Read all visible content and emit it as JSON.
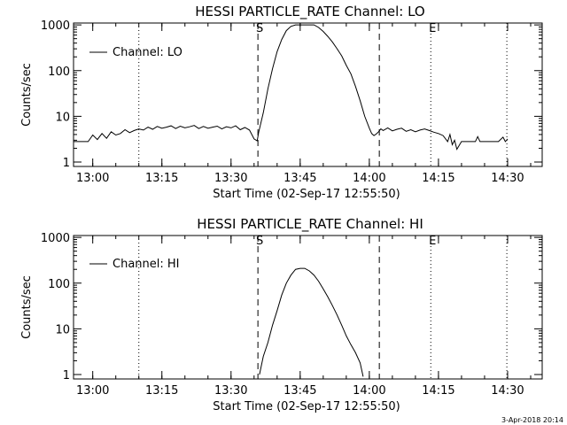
{
  "footer": {
    "date_stamp": "3-Apr-2018 20:14"
  },
  "chart_data": [
    {
      "type": "line",
      "title": "HESSI PARTICLE_RATE Channel: LO",
      "xlabel": "Start Time (02-Sep-17 12:55:50)",
      "ylabel": "Counts/sec",
      "yscale": "log",
      "ylim": [
        0.8,
        1100
      ],
      "xlim": [
        "12:55:50",
        "14:37:30"
      ],
      "x_ticks": [
        "13:00",
        "13:15",
        "13:30",
        "13:45",
        "14:00",
        "14:15",
        "14:30"
      ],
      "y_ticks": [
        "1",
        "10",
        "100",
        "1000"
      ],
      "legend": {
        "position": "top-left",
        "label": "Channel: LO"
      },
      "grid": false,
      "markers": [
        {
          "time": "13:10:00",
          "style": "dotted",
          "label": ""
        },
        {
          "time": "13:35:50",
          "style": "dashed",
          "label": "S"
        },
        {
          "time": "14:02:10",
          "style": "dashed",
          "label": ""
        },
        {
          "time": "14:13:20",
          "style": "dotted",
          "label": "E"
        },
        {
          "time": "14:29:50",
          "style": "dotted",
          "label": ""
        }
      ],
      "series": [
        {
          "x": [
            "12:55:50",
            "12:59:00",
            "13:00:00",
            "13:01:00",
            "13:02:00",
            "13:03:00",
            "13:04:00",
            "13:05:00",
            "13:06:00",
            "13:07:00",
            "13:08:00",
            "13:09:00",
            "13:10:00",
            "13:11:00",
            "13:12:00",
            "13:13:00",
            "13:14:00",
            "13:15:00",
            "13:16:00",
            "13:17:00",
            "13:18:00",
            "13:19:00",
            "13:20:00",
            "13:21:00",
            "13:22:00",
            "13:23:00",
            "13:24:00",
            "13:25:00",
            "13:26:00",
            "13:27:00",
            "13:28:00",
            "13:29:00",
            "13:30:00",
            "13:31:00",
            "13:32:00",
            "13:33:00",
            "13:34:00",
            "13:35:00",
            "13:35:40",
            "13:36:00",
            "13:37:00",
            "13:38:00",
            "13:39:00",
            "13:40:00",
            "13:41:00",
            "13:42:00",
            "13:43:00",
            "13:44:00",
            "13:45:00",
            "13:46:00",
            "13:48:00",
            "13:49:00",
            "13:50:00",
            "13:51:00",
            "13:52:00",
            "13:53:00",
            "13:54:00",
            "13:55:00",
            "13:56:00",
            "13:57:00",
            "13:58:00",
            "13:59:00",
            "14:00:00",
            "14:00:30",
            "14:01:00",
            "14:01:30",
            "14:02:00",
            "14:02:30",
            "14:03:00",
            "14:04:00",
            "14:05:00",
            "14:06:00",
            "14:07:00",
            "14:08:00",
            "14:09:00",
            "14:10:00",
            "14:11:00",
            "14:12:00",
            "14:13:00",
            "14:14:00",
            "14:15:00",
            "14:16:00",
            "14:17:00",
            "14:17:30",
            "14:18:00",
            "14:18:30",
            "14:19:00",
            "14:20:00",
            "14:21:00",
            "14:22:00",
            "14:23:00",
            "14:23:30",
            "14:24:00",
            "14:25:00",
            "14:27:00",
            "14:28:00",
            "14:29:00",
            "14:29:30",
            "14:30:00"
          ],
          "y": [
            2.8,
            2.8,
            3.9,
            3.1,
            4.2,
            3.3,
            4.6,
            3.9,
            4.2,
            5.1,
            4.4,
            4.9,
            5.3,
            5.0,
            5.8,
            5.2,
            6.0,
            5.5,
            5.8,
            6.2,
            5.4,
            6.1,
            5.6,
            5.9,
            6.3,
            5.4,
            6.0,
            5.5,
            5.8,
            6.1,
            5.3,
            5.9,
            5.6,
            6.2,
            5.1,
            5.7,
            5.0,
            3.2,
            2.9,
            4.5,
            12,
            40,
            110,
            260,
            480,
            750,
            930,
            1000,
            1000,
            1000,
            1000,
            880,
            720,
            560,
            420,
            300,
            210,
            130,
            85,
            45,
            22,
            10,
            5.5,
            4.2,
            3.8,
            4.1,
            4.6,
            5.3,
            4.9,
            5.6,
            4.8,
            5.2,
            5.5,
            4.7,
            5.1,
            4.6,
            5.0,
            5.3,
            4.9,
            4.5,
            4.2,
            3.8,
            2.8,
            4.0,
            2.4,
            3.0,
            1.9,
            2.8,
            2.8,
            2.8,
            2.8,
            3.6,
            2.8,
            2.8,
            2.8,
            2.8,
            3.5,
            2.8,
            3.2
          ]
        }
      ]
    },
    {
      "type": "line",
      "title": "HESSI PARTICLE_RATE Channel: HI",
      "xlabel": "Start Time (02-Sep-17 12:55:50)",
      "ylabel": "Counts/sec",
      "yscale": "log",
      "ylim": [
        0.8,
        1100
      ],
      "xlim": [
        "12:55:50",
        "14:37:30"
      ],
      "x_ticks": [
        "13:00",
        "13:15",
        "13:30",
        "13:45",
        "14:00",
        "14:15",
        "14:30"
      ],
      "y_ticks": [
        "1",
        "10",
        "100",
        "1000"
      ],
      "legend": {
        "position": "top-left",
        "label": "Channel: HI"
      },
      "grid": false,
      "markers": [
        {
          "time": "13:10:00",
          "style": "dotted",
          "label": ""
        },
        {
          "time": "13:35:50",
          "style": "dashed",
          "label": "S"
        },
        {
          "time": "14:02:10",
          "style": "dashed",
          "label": ""
        },
        {
          "time": "14:13:20",
          "style": "dotted",
          "label": "E"
        },
        {
          "time": "14:29:50",
          "style": "dotted",
          "label": ""
        }
      ],
      "series": [
        {
          "x": [
            "13:36:10",
            "13:37:00",
            "13:38:00",
            "13:39:00",
            "13:40:00",
            "13:41:00",
            "13:42:00",
            "13:43:00",
            "13:44:00",
            "13:45:00",
            "13:46:00",
            "13:47:00",
            "13:48:00",
            "13:49:00",
            "13:50:00",
            "13:51:00",
            "13:52:00",
            "13:53:00",
            "13:54:00",
            "13:55:00",
            "13:56:00",
            "13:57:00",
            "13:58:00",
            "13:58:40"
          ],
          "y": [
            1,
            2.5,
            5,
            12,
            25,
            55,
            100,
            150,
            200,
            210,
            210,
            185,
            150,
            110,
            75,
            50,
            32,
            20,
            12,
            7,
            4.5,
            3.0,
            1.8,
            0.9
          ]
        }
      ]
    }
  ]
}
